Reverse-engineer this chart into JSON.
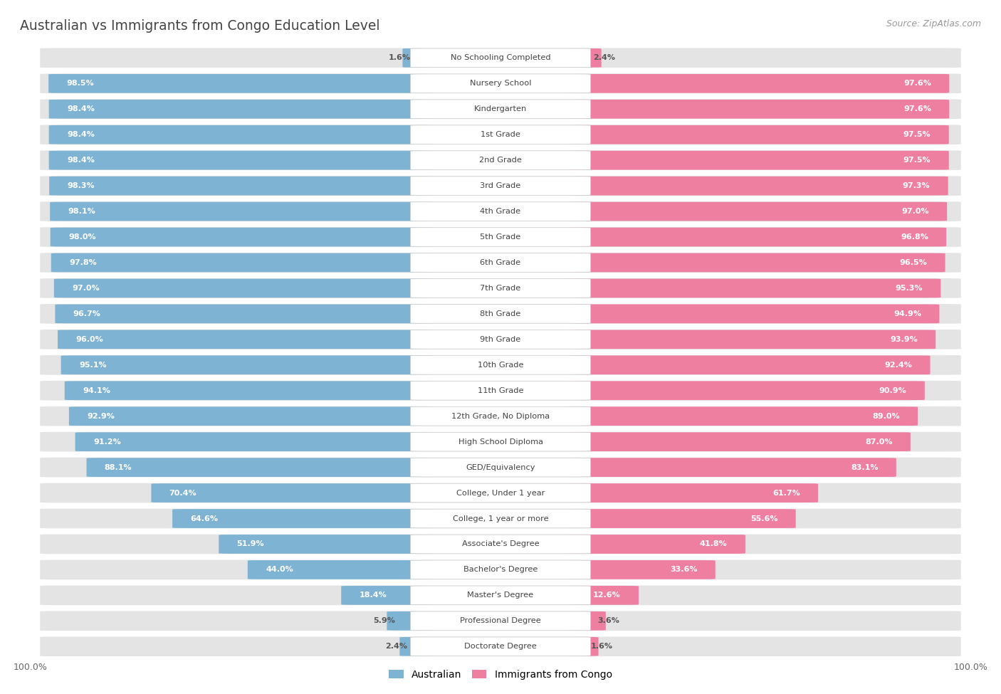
{
  "title": "Australian vs Immigrants from Congo Education Level",
  "source": "Source: ZipAtlas.com",
  "categories": [
    "No Schooling Completed",
    "Nursery School",
    "Kindergarten",
    "1st Grade",
    "2nd Grade",
    "3rd Grade",
    "4th Grade",
    "5th Grade",
    "6th Grade",
    "7th Grade",
    "8th Grade",
    "9th Grade",
    "10th Grade",
    "11th Grade",
    "12th Grade, No Diploma",
    "High School Diploma",
    "GED/Equivalency",
    "College, Under 1 year",
    "College, 1 year or more",
    "Associate's Degree",
    "Bachelor's Degree",
    "Master's Degree",
    "Professional Degree",
    "Doctorate Degree"
  ],
  "australian": [
    1.6,
    98.5,
    98.4,
    98.4,
    98.4,
    98.3,
    98.1,
    98.0,
    97.8,
    97.0,
    96.7,
    96.0,
    95.1,
    94.1,
    92.9,
    91.2,
    88.1,
    70.4,
    64.6,
    51.9,
    44.0,
    18.4,
    5.9,
    2.4
  ],
  "congo": [
    2.4,
    97.6,
    97.6,
    97.5,
    97.5,
    97.3,
    97.0,
    96.8,
    96.5,
    95.3,
    94.9,
    93.9,
    92.4,
    90.9,
    89.0,
    87.0,
    83.1,
    61.7,
    55.6,
    41.8,
    33.6,
    12.6,
    3.6,
    1.6
  ],
  "australian_color": "#7fb3d3",
  "congo_color": "#ee7fa0",
  "row_bg_color": "#e4e4e4",
  "white_color": "#ffffff",
  "title_color": "#444444",
  "value_color_light": "#ffffff",
  "value_color_dark": "#666666",
  "legend_australian": "Australian",
  "legend_congo": "Immigrants from Congo",
  "source_color": "#999999"
}
